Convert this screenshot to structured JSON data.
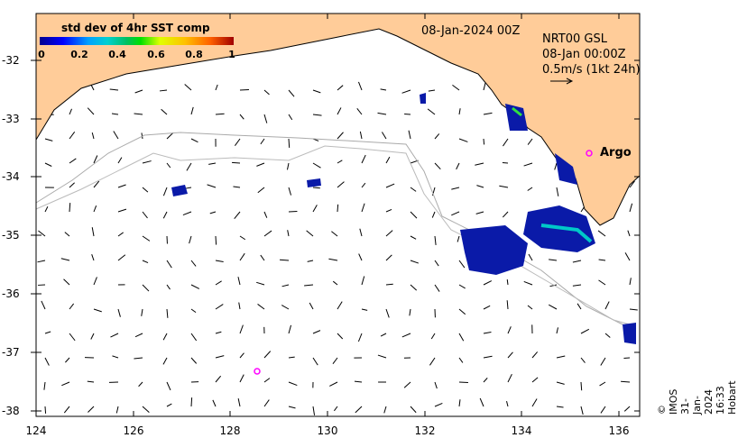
{
  "map": {
    "date_label": "08-Jan-2024 00Z",
    "product": "NRT00 GSL",
    "time": "08-Jan 00:00Z",
    "scale": "0.5m/s (1kt 24h)",
    "argo_label": "Argo",
    "credit": "© IMOS 31-Jan-2024 16:33 Hobart",
    "x_ticks": [
      "124",
      "126",
      "128",
      "130",
      "132",
      "134",
      "136"
    ],
    "y_ticks": [
      "-32",
      "-33",
      "-34",
      "-35",
      "-36",
      "-37",
      "-38"
    ],
    "land_color": "#ffcc99",
    "argo_color": "#ff00ff"
  },
  "colorbar": {
    "title": "std dev of 4hr SST comp",
    "labels": [
      "0",
      "0.2",
      "0.4",
      "0.6",
      "0.8",
      "1"
    ]
  }
}
